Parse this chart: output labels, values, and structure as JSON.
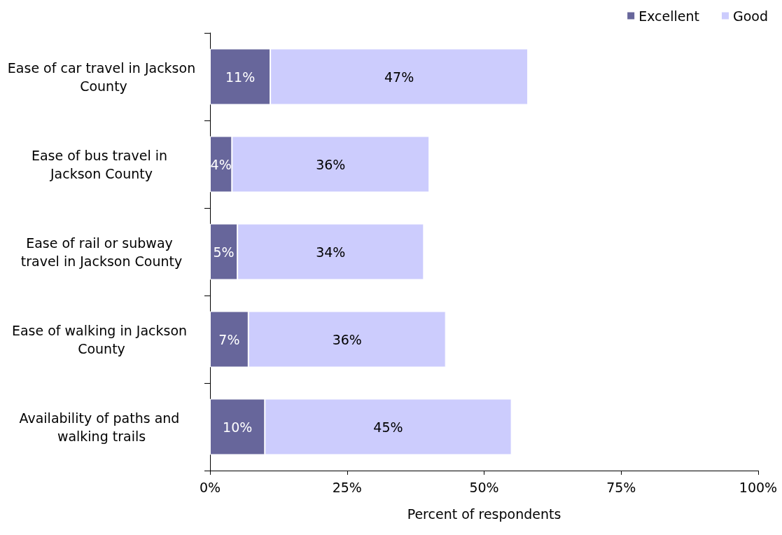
{
  "chart_data": {
    "type": "bar",
    "orientation": "horizontal",
    "stacked": true,
    "xlabel": "Percent of respondents",
    "categories": [
      "Ease of car travel in Jackson County",
      "Ease of bus travel in Jackson County",
      "Ease of rail or subway travel in Jackson County",
      "Ease of walking in Jackson County",
      "Availability of paths and walking trails"
    ],
    "series": [
      {
        "name": "Excellent",
        "color": "#67669b",
        "values": [
          11,
          4,
          5,
          7,
          10
        ],
        "value_labels": [
          "11%",
          "4%",
          "5%",
          "7%",
          "10%"
        ]
      },
      {
        "name": "Good",
        "color": "#ccccfd",
        "values": [
          47,
          36,
          34,
          36,
          45
        ],
        "value_labels": [
          "47%",
          "36%",
          "34%",
          "36%",
          "45%"
        ]
      }
    ],
    "xlim": [
      0,
      100
    ],
    "xticks": [
      {
        "value": 0,
        "label": "0%"
      },
      {
        "value": 25,
        "label": "25%"
      },
      {
        "value": 50,
        "label": "50%"
      },
      {
        "value": 75,
        "label": "75%"
      },
      {
        "value": 100,
        "label": "100%"
      }
    ],
    "grid": false,
    "legend": "top right"
  }
}
